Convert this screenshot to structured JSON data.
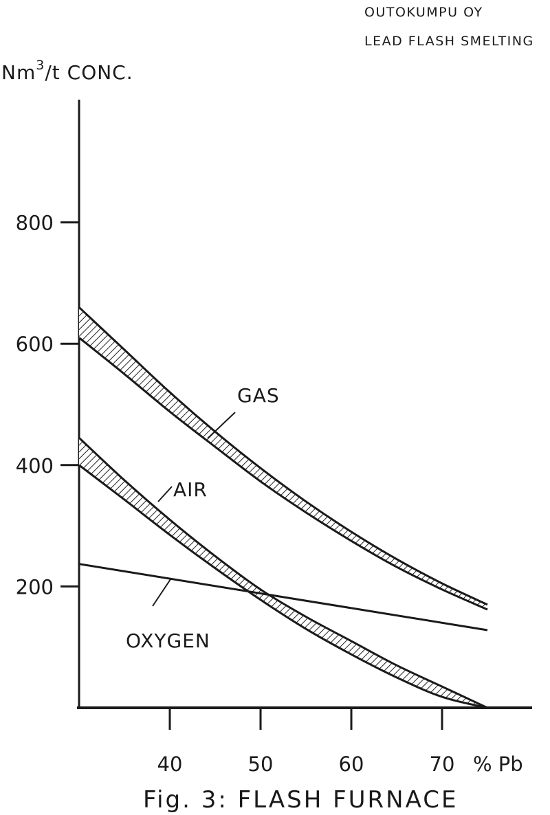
{
  "header": {
    "line1": "OUTOKUMPU OY",
    "line2": "LEAD FLASH SMELTING"
  },
  "caption": "Fig. 3:  FLASH FURNACE",
  "chart_data": {
    "type": "line",
    "ylabel_main": "Nm",
    "ylabel_sup": "3",
    "ylabel_rest": "/t CONC.",
    "xlabel": "% Pb",
    "xlim": [
      30,
      80
    ],
    "ylim": [
      0,
      1000
    ],
    "y_ticks": [
      200,
      400,
      600,
      800
    ],
    "y_tick_labels": [
      "200",
      "400",
      "600",
      "800"
    ],
    "x_ticks": [
      40,
      50,
      60,
      70
    ],
    "x_tick_labels": [
      "40",
      "50",
      "60",
      "70"
    ],
    "grid": false,
    "legend": "none",
    "annotations": [
      "GAS",
      "AIR",
      "OXYGEN"
    ],
    "series": [
      {
        "name": "GAS",
        "style": "hatched-band",
        "x": [
          30,
          35,
          40,
          45,
          50,
          55,
          60,
          65,
          70,
          75
        ],
        "upper": [
          660,
          590,
          520,
          455,
          395,
          340,
          290,
          245,
          205,
          170
        ],
        "lower": [
          610,
          550,
          488,
          430,
          373,
          322,
          275,
          232,
          195,
          162
        ]
      },
      {
        "name": "AIR",
        "style": "hatched-band",
        "x": [
          30,
          35,
          40,
          45,
          50,
          55,
          60,
          65,
          70,
          75
        ],
        "upper": [
          445,
          375,
          310,
          250,
          195,
          150,
          110,
          70,
          35,
          0
        ],
        "lower": [
          400,
          343,
          285,
          230,
          178,
          130,
          88,
          50,
          18,
          0
        ]
      },
      {
        "name": "OXYGEN",
        "style": "line",
        "x": [
          30,
          75
        ],
        "y": [
          237,
          128
        ]
      }
    ]
  }
}
